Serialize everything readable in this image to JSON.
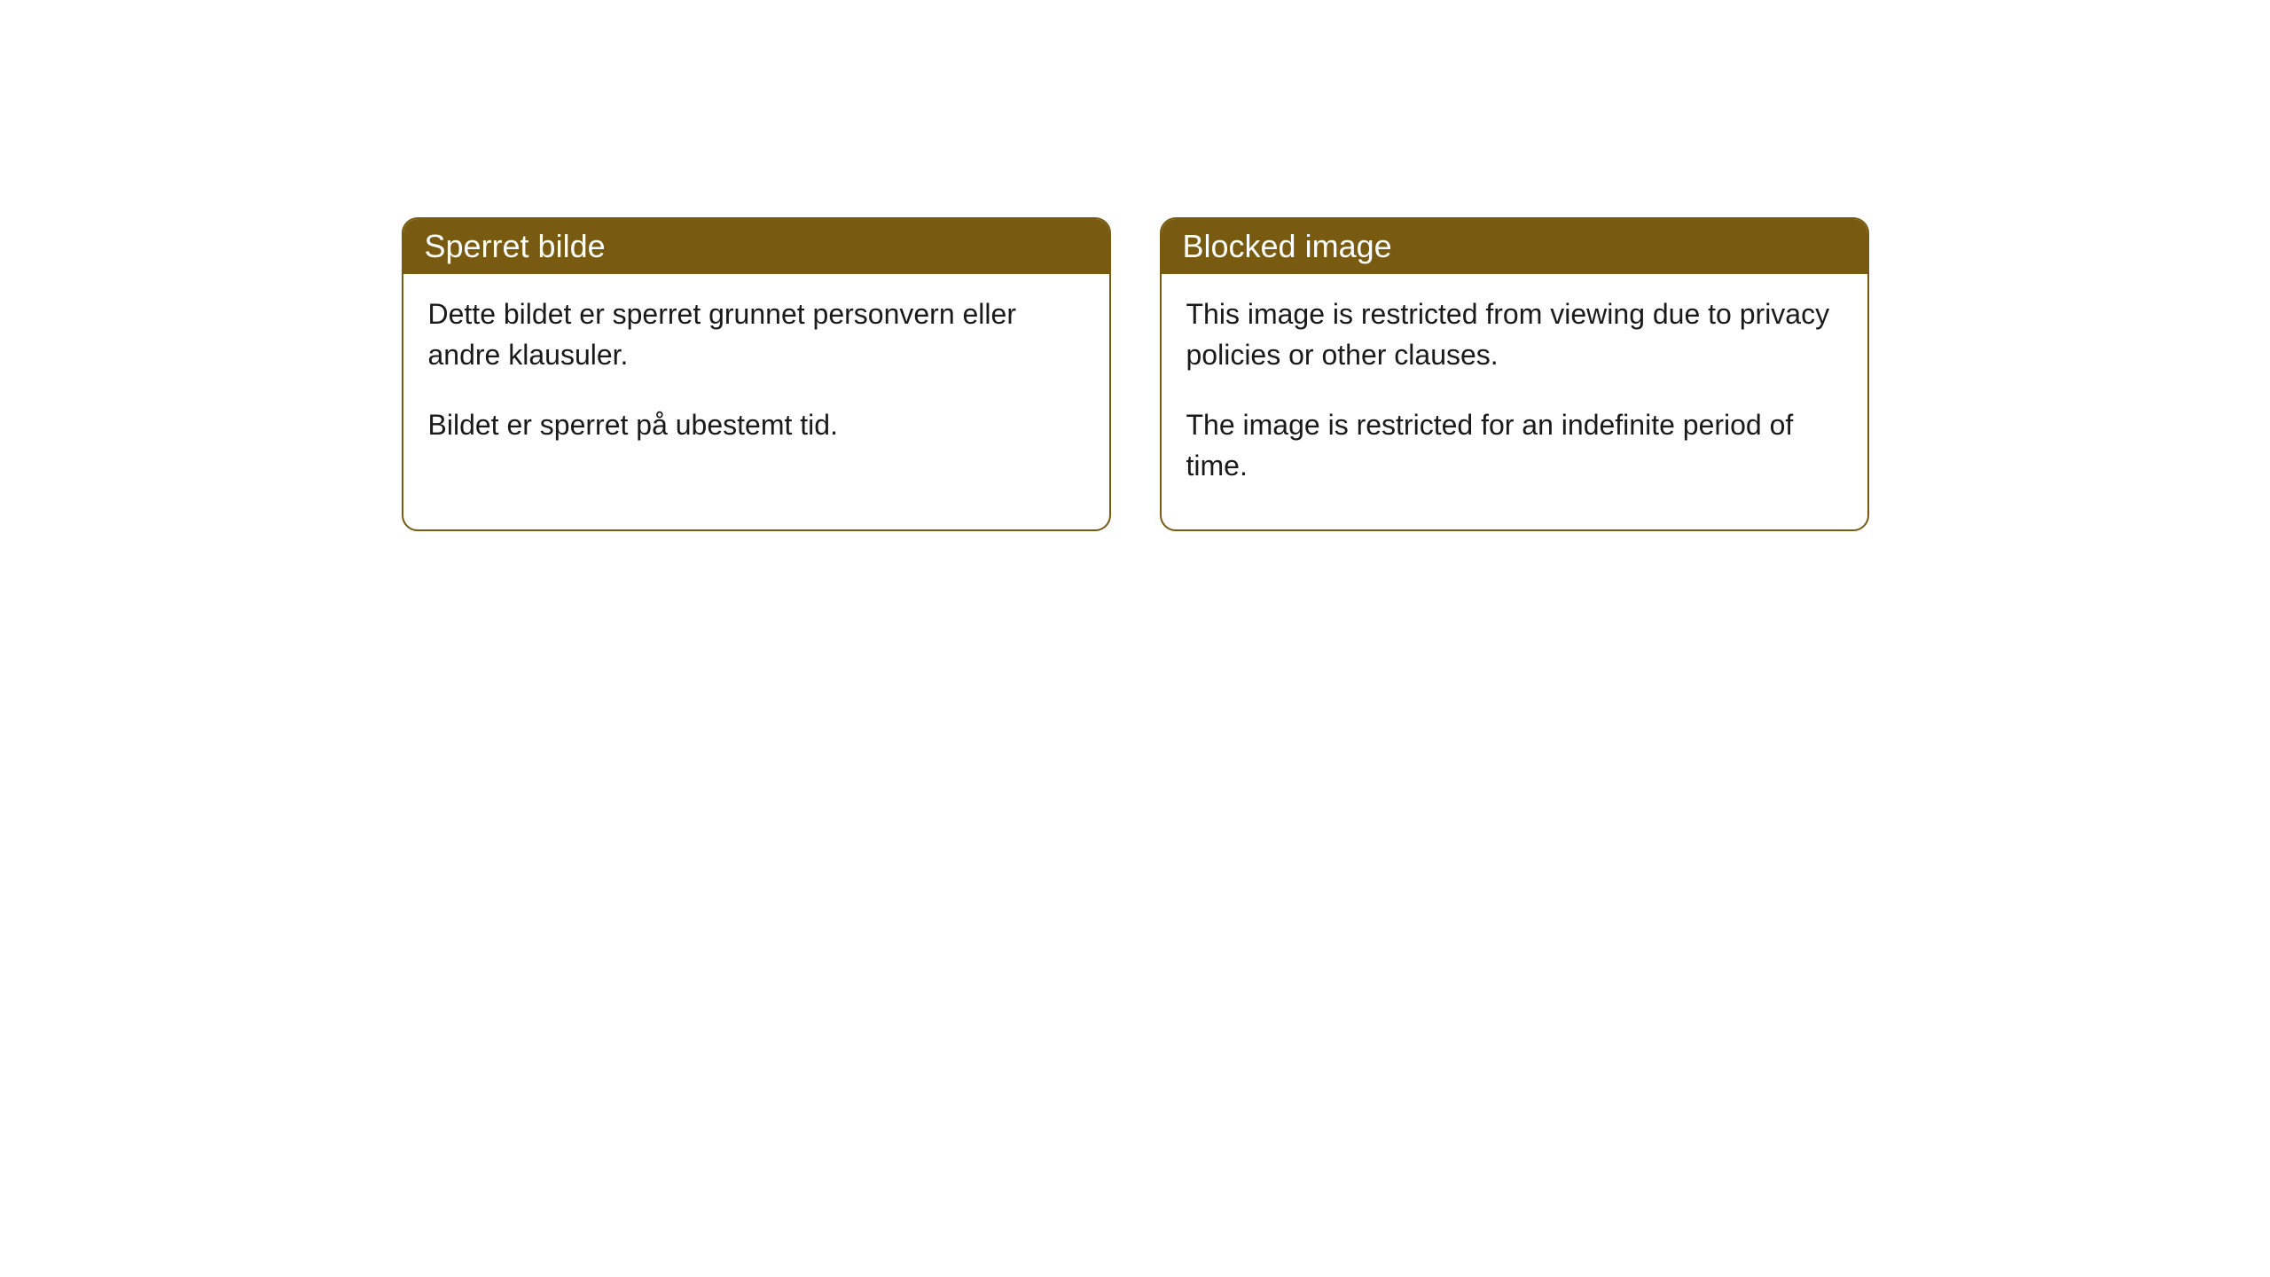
{
  "cards": [
    {
      "title": "Sperret bilde",
      "paragraph1": "Dette bildet er sperret grunnet personvern eller andre klausuler.",
      "paragraph2": "Bildet er sperret på ubestemt tid."
    },
    {
      "title": "Blocked image",
      "paragraph1": "This image is restricted from viewing due to privacy policies or other clauses.",
      "paragraph2": "The image is restricted for an indefinite period of time."
    }
  ],
  "styling": {
    "header_background": "#785b11",
    "header_text_color": "#ffffff",
    "border_color": "#785b11",
    "body_background": "#ffffff",
    "body_text_color": "#1a1a1a",
    "border_radius": 18,
    "header_fontsize": 36,
    "body_fontsize": 32
  }
}
